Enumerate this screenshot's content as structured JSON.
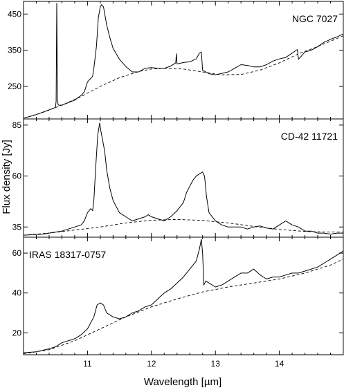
{
  "chart_data": {
    "type": "line",
    "xlabel": "Wavelength [µm]",
    "ylabel": "Flux density [Jy]",
    "xlim": [
      10.0,
      15.0
    ],
    "xticks": [
      11,
      12,
      13,
      14
    ],
    "grid": false,
    "panels": [
      {
        "label": "NGC 7027",
        "ylim": [
          160,
          485
        ],
        "yticks": [
          250,
          350,
          450
        ],
        "series": [
          {
            "role": "spectrum",
            "style": "solid",
            "x": [
              10.0,
              10.2,
              10.4,
              10.5,
              10.51,
              10.52,
              10.53,
              10.54,
              10.55,
              10.6,
              10.8,
              10.9,
              10.95,
              11.0,
              11.05,
              11.08,
              11.1,
              11.14,
              11.17,
              11.2,
              11.22,
              11.25,
              11.3,
              11.35,
              11.4,
              11.5,
              11.6,
              11.7,
              11.8,
              11.9,
              12.0,
              12.1,
              12.2,
              12.3,
              12.38,
              12.39,
              12.4,
              12.5,
              12.6,
              12.7,
              12.75,
              12.78,
              12.8,
              12.85,
              12.9,
              13.0,
              13.1,
              13.2,
              13.3,
              13.4,
              13.5,
              13.6,
              13.7,
              13.8,
              13.9,
              14.0,
              14.1,
              14.2,
              14.28,
              14.3,
              14.4,
              14.5,
              14.6,
              14.7,
              14.8,
              14.9,
              15.0
            ],
            "y": [
              162,
              172,
              185,
              192,
              210,
              480,
              215,
              200,
              198,
              198,
              212,
              225,
              235,
              262,
              272,
              278,
              300,
              360,
              440,
              470,
              476,
              470,
              420,
              385,
              355,
              325,
              305,
              290,
              290,
              300,
              302,
              300,
              300,
              306,
              315,
              340,
              312,
              316,
              318,
              326,
              342,
              345,
              295,
              290,
              285,
              282,
              286,
              290,
              300,
              310,
              308,
              304,
              304,
              310,
              320,
              326,
              330,
              342,
              352,
              325,
              345,
              350,
              360,
              372,
              380,
              387,
              395
            ]
          },
          {
            "role": "continuum",
            "style": "dashed",
            "x": [
              10.0,
              10.3,
              10.6,
              10.9,
              11.2,
              11.5,
              11.8,
              12.0,
              12.2,
              12.5,
              12.8,
              13.1,
              13.4,
              13.7,
              14.0,
              14.3,
              14.6,
              15.0
            ],
            "y": [
              162,
              178,
              198,
              222,
              250,
              274,
              291,
              298,
              300,
              298,
              290,
              282,
              283,
              295,
              315,
              340,
              360,
              390
            ]
          }
        ]
      },
      {
        "label": "CD-42 11721",
        "ylim": [
          30,
          88
        ],
        "yticks": [
          35,
          60,
          85
        ],
        "series": [
          {
            "role": "spectrum",
            "style": "solid",
            "x": [
              10.0,
              10.3,
              10.5,
              10.6,
              10.7,
              10.8,
              10.9,
              10.95,
              11.0,
              11.05,
              11.08,
              11.1,
              11.13,
              11.16,
              11.19,
              11.21,
              11.24,
              11.27,
              11.3,
              11.35,
              11.4,
              11.45,
              11.5,
              11.6,
              11.7,
              11.8,
              11.9,
              11.95,
              12.0,
              12.1,
              12.2,
              12.3,
              12.4,
              12.5,
              12.55,
              12.6,
              12.65,
              12.7,
              12.75,
              12.8,
              12.83,
              12.86,
              12.9,
              13.0,
              13.1,
              13.2,
              13.3,
              13.4,
              13.5,
              13.6,
              13.7,
              13.8,
              13.9,
              14.0,
              14.1,
              14.2,
              14.3,
              14.4,
              14.5,
              14.6,
              14.7,
              14.8,
              14.9,
              15.0
            ],
            "y": [
              31,
              31.5,
              32.5,
              33,
              34,
              35,
              36,
              38,
              42,
              44,
              43,
              48,
              65,
              80,
              86,
              82,
              77,
              72,
              63,
              54,
              48,
              45,
              42,
              40,
              38,
              39,
              40,
              41,
              40,
              39,
              38,
              40,
              43,
              47,
              52,
              55,
              58,
              60,
              61,
              62,
              60,
              50,
              42,
              38,
              36,
              35,
              35,
              35,
              34,
              35,
              35.5,
              34.5,
              34,
              36,
              38,
              36,
              35,
              33,
              33,
              32,
              32,
              31.5,
              32,
              32
            ]
          },
          {
            "role": "continuum",
            "style": "dashed",
            "x": [
              10.0,
              10.4,
              10.8,
              11.2,
              11.6,
              12.0,
              12.4,
              12.8,
              13.2,
              13.6,
              14.0,
              14.4,
              14.8,
              15.0
            ],
            "y": [
              31,
              32,
              33.5,
              35,
              37,
              38.3,
              38.7,
              38.2,
              37,
              35.3,
              33.8,
              32.8,
              32.5,
              32.5
            ]
          }
        ]
      },
      {
        "label": "IRAS 18317-0757",
        "ylim": [
          9,
          68
        ],
        "yticks": [
          20,
          40,
          60
        ],
        "series": [
          {
            "role": "spectrum",
            "style": "solid",
            "x": [
              10.0,
              10.2,
              10.4,
              10.5,
              10.6,
              10.8,
              10.9,
              11.0,
              11.1,
              11.15,
              11.2,
              11.25,
              11.3,
              11.35,
              11.4,
              11.5,
              11.6,
              11.7,
              11.8,
              11.9,
              12.0,
              12.1,
              12.2,
              12.3,
              12.4,
              12.5,
              12.6,
              12.7,
              12.75,
              12.78,
              12.8,
              12.82,
              12.85,
              12.9,
              13.0,
              13.1,
              13.2,
              13.3,
              13.4,
              13.5,
              13.6,
              13.7,
              13.8,
              13.9,
              14.0,
              14.1,
              14.2,
              14.3,
              14.4,
              14.5,
              14.6,
              14.7,
              14.8,
              14.9,
              15.0
            ],
            "y": [
              10,
              10.5,
              12,
              13,
              15,
              17,
              19,
              22,
              28,
              34,
              35,
              34,
              30,
              29,
              28,
              27,
              28,
              30,
              31,
              33,
              34,
              37,
              40,
              42,
              45,
              48,
              52,
              56,
              62,
              67,
              60,
              44,
              46,
              45,
              43,
              44,
              46,
              48,
              50,
              50,
              52,
              49,
              47,
              48,
              48,
              49,
              50,
              50,
              51,
              52,
              53,
              55,
              57,
              59,
              61
            ]
          },
          {
            "role": "continuum",
            "style": "dashed",
            "x": [
              10.0,
              10.4,
              10.8,
              11.2,
              11.6,
              12.0,
              12.4,
              12.8,
              13.2,
              13.6,
              14.0,
              14.4,
              14.8,
              15.0
            ],
            "y": [
              9.5,
              11.5,
              16,
              22,
              28,
              33,
              37,
              40.5,
              43,
              45,
              47,
              50,
              54,
              57
            ]
          }
        ]
      }
    ]
  }
}
